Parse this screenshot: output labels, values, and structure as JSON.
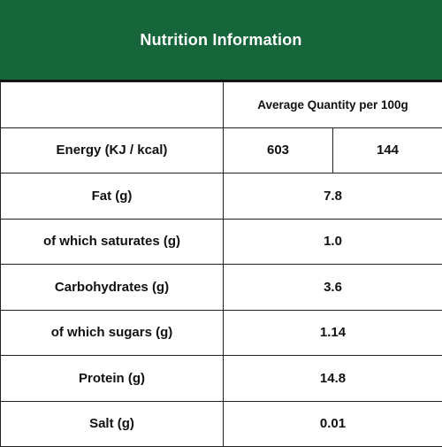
{
  "title": "Nutrition Information",
  "column_header": "Average Quantity per 100g",
  "energy": {
    "label": "Energy (KJ / kcal)",
    "kj": "603",
    "kcal": "144"
  },
  "rows": [
    {
      "label": "Fat (g)",
      "value": "7.8"
    },
    {
      "label": "of which saturates (g)",
      "value": "1.0"
    },
    {
      "label": "Carbohydrates (g)",
      "value": "3.6"
    },
    {
      "label": "of which sugars (g)",
      "value": "1.14"
    },
    {
      "label": "Protein (g)",
      "value": "14.8"
    },
    {
      "label": "Salt (g)",
      "value": "0.01"
    }
  ],
  "colors": {
    "header_bg": "#17653a",
    "header_text": "#ffffff",
    "border": "#222222"
  }
}
